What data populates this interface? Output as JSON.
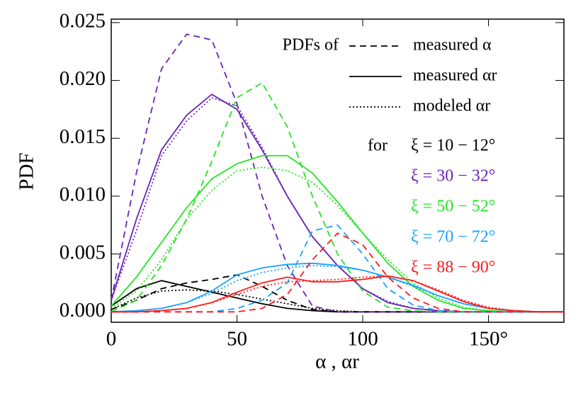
{
  "chart_data": {
    "type": "line",
    "xlabel": "α , αr",
    "ylabel": "PDF",
    "xlim": [
      0,
      180
    ],
    "ylim": [
      -0.0009,
      0.0253
    ],
    "xticks": [
      0,
      50,
      100,
      {
        "value": 150,
        "label": "150°"
      }
    ],
    "yticks": [
      {
        "value": 0,
        "label": "0.000"
      },
      {
        "value": 0.005,
        "label": "0.005"
      },
      {
        "value": 0.01,
        "label": "0.010"
      },
      {
        "value": 0.015,
        "label": "0.015"
      },
      {
        "value": 0.02,
        "label": "0.020"
      },
      {
        "value": 0.025,
        "label": "0.025"
      }
    ],
    "legend_title": "PDFs of",
    "groups_title": "for",
    "line_styles": [
      {
        "label": "measured α",
        "dash": "dashed"
      },
      {
        "label": "measured αr",
        "dash": "solid"
      },
      {
        "label": "modeled αr",
        "dash": "dotted"
      }
    ],
    "x": [
      0,
      10,
      20,
      30,
      40,
      50,
      60,
      70,
      80,
      90,
      100,
      110,
      120,
      130,
      140,
      150,
      160,
      170,
      180
    ],
    "series": [
      {
        "name": "ξ = 10 − 12°",
        "color": "#000000",
        "values": [
          [
            0.0002,
            0.001,
            0.002,
            0.0025,
            0.0028,
            0.0032,
            0.0022,
            0.001,
            0.0002,
            0,
            0,
            0,
            0,
            0,
            0,
            0,
            0,
            0,
            0
          ],
          [
            0.0005,
            0.002,
            0.0027,
            0.0022,
            0.0017,
            0.0012,
            0.0007,
            0.0003,
            0.0001,
            0,
            0,
            0,
            0,
            0,
            0,
            0,
            0,
            0,
            0
          ],
          [
            0.0002,
            0.0012,
            0.0018,
            0.0019,
            0.0018,
            0.0015,
            0.0011,
            0.0007,
            0.0003,
            0.0001,
            0,
            0,
            0,
            0,
            0,
            0,
            0,
            0,
            0
          ]
        ]
      },
      {
        "name": "ξ = 30 − 32°",
        "color": "#6a22b8",
        "values": [
          [
            0.001,
            0.012,
            0.021,
            0.024,
            0.0235,
            0.018,
            0.01,
            0.004,
            0.0005,
            0,
            0,
            0,
            0,
            0,
            0,
            0,
            0,
            0,
            0
          ],
          [
            0.001,
            0.008,
            0.014,
            0.017,
            0.0188,
            0.0175,
            0.014,
            0.01,
            0.0065,
            0.004,
            0.002,
            0.0008,
            0.0003,
            0.0001,
            0,
            0,
            0,
            0,
            0
          ],
          [
            0.001,
            0.007,
            0.0135,
            0.0165,
            0.0185,
            0.0178,
            0.0142,
            0.01,
            0.0065,
            0.004,
            0.002,
            0.0009,
            0.0003,
            0.0001,
            0,
            0,
            0,
            0,
            0
          ]
        ]
      },
      {
        "name": "ξ = 50 − 52°",
        "color": "#22e622",
        "values": [
          [
            0,
            0.001,
            0.004,
            0.008,
            0.013,
            0.0185,
            0.0198,
            0.016,
            0.01,
            0.005,
            0.0018,
            0.0004,
            0.0001,
            0,
            0,
            0,
            0,
            0,
            0
          ],
          [
            0.0005,
            0.003,
            0.006,
            0.009,
            0.0115,
            0.0128,
            0.0135,
            0.0135,
            0.012,
            0.0095,
            0.0068,
            0.0042,
            0.0022,
            0.001,
            0.0003,
            0.0001,
            0,
            0,
            0
          ],
          [
            0.0003,
            0.0018,
            0.0045,
            0.008,
            0.0105,
            0.0122,
            0.0125,
            0.0122,
            0.0112,
            0.0092,
            0.0068,
            0.0045,
            0.0025,
            0.0012,
            0.0004,
            0.0001,
            0,
            0,
            0
          ]
        ]
      },
      {
        "name": "ξ = 70 − 72°",
        "color": "#1aa3ff",
        "values": [
          [
            0,
            0,
            0,
            0,
            0,
            0.0003,
            0.001,
            0.0025,
            0.007,
            0.0075,
            0.005,
            0.002,
            0.0006,
            0.0001,
            0,
            0,
            0,
            0,
            0
          ],
          [
            0,
            0.0001,
            0.0003,
            0.0008,
            0.0018,
            0.0032,
            0.0038,
            0.0041,
            0.0042,
            0.004,
            0.0036,
            0.003,
            0.0023,
            0.0014,
            0.0007,
            0.0003,
            0.0001,
            0,
            0
          ],
          [
            0,
            0.0001,
            0.0003,
            0.0008,
            0.0016,
            0.0027,
            0.0034,
            0.0038,
            0.004,
            0.0039,
            0.0036,
            0.003,
            0.0022,
            0.0014,
            0.0007,
            0.0003,
            0.0001,
            0,
            0
          ]
        ]
      },
      {
        "name": "ξ = 88 − 90°",
        "color": "#ff1a1a",
        "values": [
          [
            0,
            0,
            0,
            0,
            0,
            0,
            0.0003,
            0.0015,
            0.0045,
            0.0068,
            0.0058,
            0.003,
            0.0012,
            0.0003,
            0,
            0,
            0,
            0,
            0
          ],
          [
            0,
            0,
            0.0001,
            0.0003,
            0.0008,
            0.0017,
            0.0025,
            0.003,
            0.0026,
            0.0026,
            0.0028,
            0.0031,
            0.0027,
            0.0018,
            0.0009,
            0.0003,
            0.0001,
            0,
            0
          ],
          [
            0,
            0,
            0.0001,
            0.0003,
            0.0008,
            0.0015,
            0.0022,
            0.0026,
            0.0027,
            0.0028,
            0.003,
            0.0031,
            0.0027,
            0.0019,
            0.001,
            0.0004,
            0.0001,
            0,
            0
          ]
        ]
      }
    ]
  }
}
